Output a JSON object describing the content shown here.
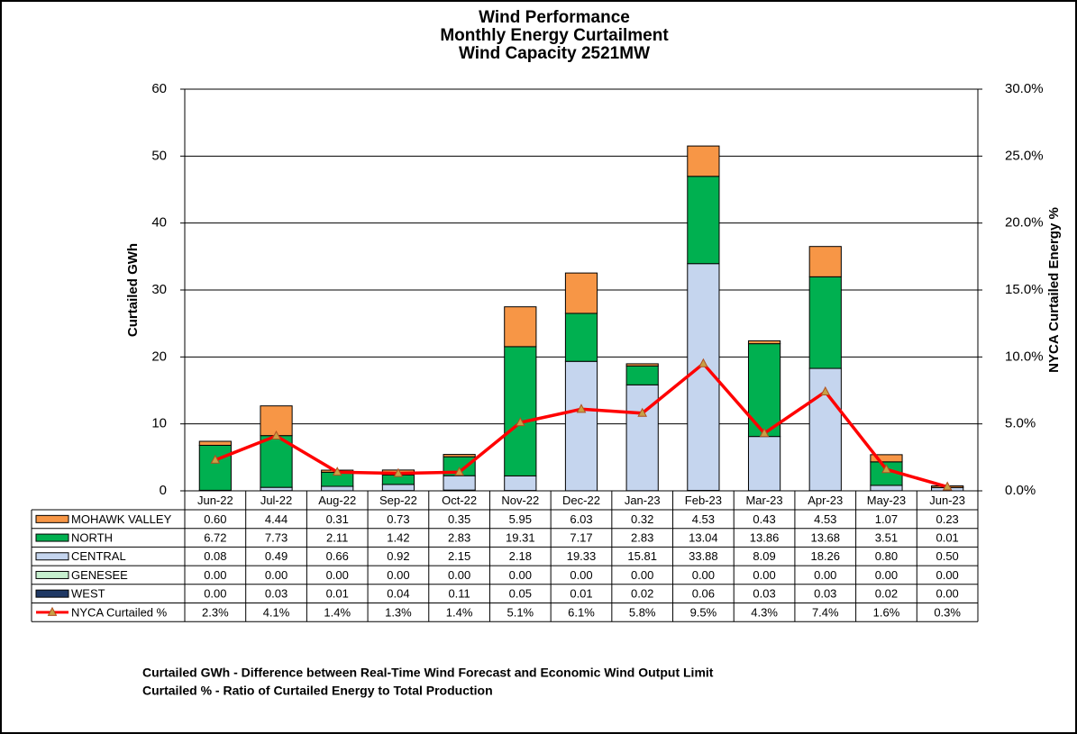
{
  "chart_data": {
    "type": "bar",
    "stacked": true,
    "title": [
      "Wind Performance",
      "Monthly Energy Curtailment",
      "Wind Capacity 2521MW"
    ],
    "y_label": "Curtailed GWh",
    "y2_label": "NYCA Curtailed Energy %",
    "categories": [
      "Jun-22",
      "Jul-22",
      "Aug-22",
      "Sep-22",
      "Oct-22",
      "Nov-22",
      "Dec-22",
      "Jan-23",
      "Feb-23",
      "Mar-23",
      "Apr-23",
      "May-23",
      "Jun-23"
    ],
    "ylim": [
      0,
      60
    ],
    "yticks": [
      0,
      10,
      20,
      30,
      40,
      50,
      60
    ],
    "y2lim": [
      0,
      30
    ],
    "y2ticks": [
      {
        "value": 0,
        "label": "0.0%"
      },
      {
        "value": 5,
        "label": "5.0%"
      },
      {
        "value": 10,
        "label": "10.0%"
      },
      {
        "value": 15,
        "label": "15.0%"
      },
      {
        "value": 20,
        "label": "20.0%"
      },
      {
        "value": 25,
        "label": "25.0%"
      },
      {
        "value": 30,
        "label": "30.0%"
      }
    ],
    "grid": true,
    "series": [
      {
        "name": "MOHAWK VALLEY",
        "color": "#f79646",
        "values": [
          0.6,
          4.44,
          0.31,
          0.73,
          0.35,
          5.95,
          6.03,
          0.32,
          4.53,
          0.43,
          4.53,
          1.07,
          0.23
        ],
        "value_labels": [
          "0.60",
          "4.44",
          "0.31",
          "0.73",
          "0.35",
          "5.95",
          "6.03",
          "0.32",
          "4.53",
          "0.43",
          "4.53",
          "1.07",
          "0.23"
        ]
      },
      {
        "name": "NORTH",
        "color": "#00b050",
        "values": [
          6.72,
          7.73,
          2.11,
          1.42,
          2.83,
          19.31,
          7.17,
          2.83,
          13.04,
          13.86,
          13.68,
          3.51,
          0.01
        ],
        "value_labels": [
          "6.72",
          "7.73",
          "2.11",
          "1.42",
          "2.83",
          "19.31",
          "7.17",
          "2.83",
          "13.04",
          "13.86",
          "13.68",
          "3.51",
          "0.01"
        ]
      },
      {
        "name": "CENTRAL",
        "color": "#c5d5ee",
        "values": [
          0.08,
          0.49,
          0.66,
          0.92,
          2.15,
          2.18,
          19.33,
          15.81,
          33.88,
          8.09,
          18.26,
          0.8,
          0.5
        ],
        "value_labels": [
          "0.08",
          "0.49",
          "0.66",
          "0.92",
          "2.15",
          "2.18",
          "19.33",
          "15.81",
          "33.88",
          "8.09",
          "18.26",
          "0.80",
          "0.50"
        ]
      },
      {
        "name": "GENESEE",
        "color": "#c6efce",
        "values": [
          0,
          0,
          0,
          0,
          0,
          0,
          0,
          0,
          0,
          0,
          0,
          0,
          0
        ],
        "value_labels": [
          "0.00",
          "0.00",
          "0.00",
          "0.00",
          "0.00",
          "0.00",
          "0.00",
          "0.00",
          "0.00",
          "0.00",
          "0.00",
          "0.00",
          "0.00"
        ]
      },
      {
        "name": "WEST",
        "color": "#1f3864",
        "values": [
          0,
          0.03,
          0.01,
          0.04,
          0.11,
          0.05,
          0.01,
          0.02,
          0.06,
          0.03,
          0.03,
          0.02,
          0
        ],
        "value_labels": [
          "0.00",
          "0.03",
          "0.01",
          "0.04",
          "0.11",
          "0.05",
          "0.01",
          "0.02",
          "0.06",
          "0.03",
          "0.03",
          "0.02",
          "0.00"
        ]
      },
      {
        "name": "NYCA Curtailed %",
        "color": "#ff0000",
        "type": "line",
        "axis": "y2",
        "values": [
          2.3,
          4.1,
          1.4,
          1.3,
          1.4,
          5.1,
          6.1,
          5.8,
          9.5,
          4.3,
          7.4,
          1.6,
          0.3
        ],
        "value_labels": [
          "2.3%",
          "4.1%",
          "1.4%",
          "1.3%",
          "1.4%",
          "5.1%",
          "6.1%",
          "5.8%",
          "9.5%",
          "4.3%",
          "7.4%",
          "1.6%",
          "0.3%"
        ]
      }
    ],
    "notes": [
      "Curtailed GWh - Difference between Real-Time Wind Forecast and Economic Wind Output Limit",
      "Curtailed % - Ratio of Curtailed Energy to Total Production"
    ]
  }
}
